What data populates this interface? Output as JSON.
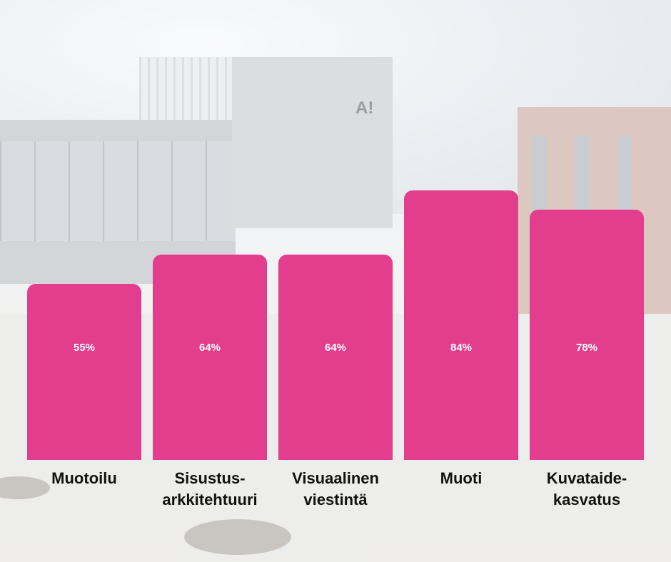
{
  "chart_data": {
    "type": "bar",
    "categories": [
      [
        "Muotoilu"
      ],
      [
        "Sisustus-",
        "arkkitehtuuri"
      ],
      [
        "Visuaalinen",
        "viestintä"
      ],
      [
        "Muoti"
      ],
      [
        "Kuvataide-",
        "kasvatus"
      ]
    ],
    "values": [
      55,
      64,
      64,
      84,
      78
    ],
    "value_labels": [
      "55%",
      "64%",
      "64%",
      "84%",
      "78%"
    ],
    "title": "",
    "xlabel": "",
    "ylabel": "",
    "ylim": [
      0,
      100
    ],
    "grid": false,
    "legend": "none",
    "colors": {
      "bar": "#e33d8d",
      "value_text": "#ffffff",
      "label_text": "#111111"
    }
  }
}
